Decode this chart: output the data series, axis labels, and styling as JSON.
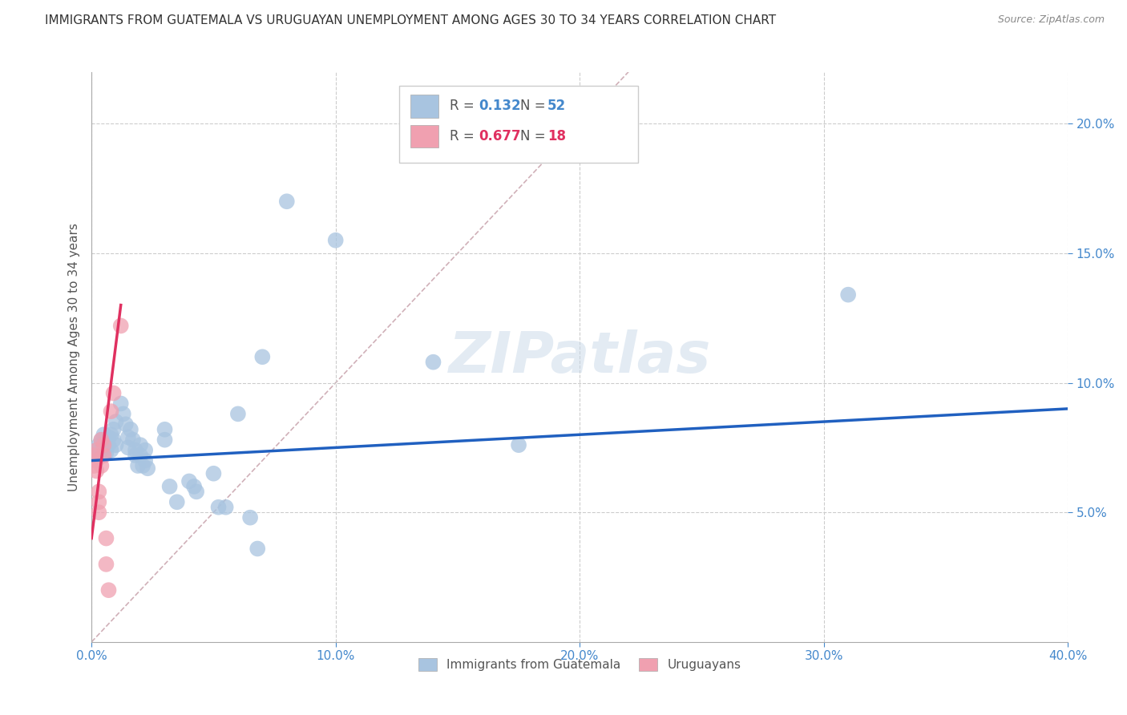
{
  "title": "IMMIGRANTS FROM GUATEMALA VS URUGUAYAN UNEMPLOYMENT AMONG AGES 30 TO 34 YEARS CORRELATION CHART",
  "source": "Source: ZipAtlas.com",
  "ylabel": "Unemployment Among Ages 30 to 34 years",
  "xlim": [
    0,
    0.4
  ],
  "ylim": [
    0,
    0.22
  ],
  "xticks": [
    0.0,
    0.1,
    0.2,
    0.3,
    0.4
  ],
  "xtick_labels": [
    "0.0%",
    "10.0%",
    "20.0%",
    "30.0%",
    "40.0%"
  ],
  "yticks": [
    0.05,
    0.1,
    0.15,
    0.2
  ],
  "ytick_labels": [
    "5.0%",
    "10.0%",
    "15.0%",
    "20.0%"
  ],
  "legend_r_blue": "0.132",
  "legend_n_blue": "52",
  "legend_r_pink": "0.677",
  "legend_n_pink": "18",
  "blue_color": "#a8c4e0",
  "pink_color": "#f0a0b0",
  "blue_line_color": "#2060c0",
  "pink_line_color": "#e03060",
  "diagonal_color": "#d0b0b8",
  "watermark": "ZIPatlas",
  "blue_scatter": [
    [
      0.002,
      0.074
    ],
    [
      0.003,
      0.076
    ],
    [
      0.003,
      0.072
    ],
    [
      0.004,
      0.078
    ],
    [
      0.004,
      0.074
    ],
    [
      0.005,
      0.08
    ],
    [
      0.005,
      0.077
    ],
    [
      0.006,
      0.075
    ],
    [
      0.006,
      0.073
    ],
    [
      0.007,
      0.079
    ],
    [
      0.007,
      0.076
    ],
    [
      0.008,
      0.08
    ],
    [
      0.008,
      0.074
    ],
    [
      0.009,
      0.082
    ],
    [
      0.009,
      0.078
    ],
    [
      0.01,
      0.085
    ],
    [
      0.01,
      0.076
    ],
    [
      0.012,
      0.092
    ],
    [
      0.013,
      0.088
    ],
    [
      0.014,
      0.084
    ],
    [
      0.015,
      0.079
    ],
    [
      0.015,
      0.075
    ],
    [
      0.016,
      0.082
    ],
    [
      0.017,
      0.078
    ],
    [
      0.018,
      0.074
    ],
    [
      0.018,
      0.072
    ],
    [
      0.019,
      0.068
    ],
    [
      0.02,
      0.076
    ],
    [
      0.02,
      0.072
    ],
    [
      0.021,
      0.068
    ],
    [
      0.022,
      0.074
    ],
    [
      0.022,
      0.07
    ],
    [
      0.023,
      0.067
    ],
    [
      0.03,
      0.082
    ],
    [
      0.03,
      0.078
    ],
    [
      0.032,
      0.06
    ],
    [
      0.035,
      0.054
    ],
    [
      0.04,
      0.062
    ],
    [
      0.042,
      0.06
    ],
    [
      0.043,
      0.058
    ],
    [
      0.05,
      0.065
    ],
    [
      0.052,
      0.052
    ],
    [
      0.055,
      0.052
    ],
    [
      0.06,
      0.088
    ],
    [
      0.065,
      0.048
    ],
    [
      0.068,
      0.036
    ],
    [
      0.07,
      0.11
    ],
    [
      0.08,
      0.17
    ],
    [
      0.1,
      0.155
    ],
    [
      0.14,
      0.108
    ],
    [
      0.175,
      0.076
    ],
    [
      0.31,
      0.134
    ]
  ],
  "pink_scatter": [
    [
      0.001,
      0.072
    ],
    [
      0.001,
      0.068
    ],
    [
      0.002,
      0.074
    ],
    [
      0.002,
      0.07
    ],
    [
      0.002,
      0.066
    ],
    [
      0.003,
      0.058
    ],
    [
      0.003,
      0.054
    ],
    [
      0.003,
      0.05
    ],
    [
      0.004,
      0.078
    ],
    [
      0.004,
      0.068
    ],
    [
      0.005,
      0.076
    ],
    [
      0.005,
      0.072
    ],
    [
      0.006,
      0.04
    ],
    [
      0.006,
      0.03
    ],
    [
      0.007,
      0.02
    ],
    [
      0.008,
      0.089
    ],
    [
      0.009,
      0.096
    ],
    [
      0.012,
      0.122
    ]
  ],
  "blue_fit": [
    0.0,
    0.4,
    0.07,
    0.09
  ],
  "pink_fit": [
    0.0,
    0.012,
    0.04,
    0.13
  ],
  "diagonal_fit": [
    0.0,
    0.2,
    0.0,
    0.2
  ]
}
